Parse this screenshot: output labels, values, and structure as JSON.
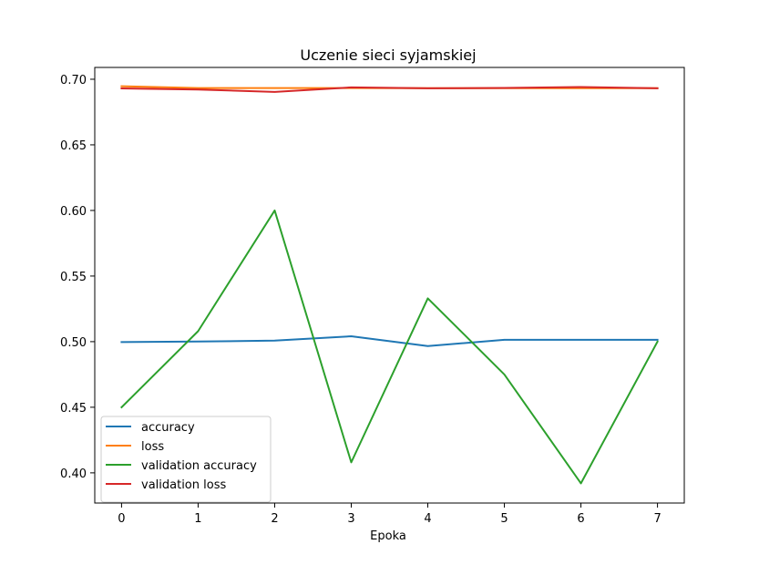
{
  "chart_data": {
    "type": "line",
    "title": "Uczenie sieci syjamskiej",
    "xlabel": "Epoka",
    "ylabel": "",
    "xlim": [
      -0.35,
      7.35
    ],
    "ylim": [
      0.377,
      0.709
    ],
    "xticks": [
      0,
      1,
      2,
      3,
      4,
      5,
      6,
      7
    ],
    "yticks": [
      0.4,
      0.45,
      0.5,
      0.55,
      0.6,
      0.65,
      0.7
    ],
    "ytick_labels": [
      "0.40",
      "0.45",
      "0.50",
      "0.55",
      "0.60",
      "0.65",
      "0.70"
    ],
    "grid": false,
    "legend_position": "lower-left",
    "x": [
      0,
      1,
      2,
      3,
      4,
      5,
      6,
      7
    ],
    "series": [
      {
        "name": "accuracy",
        "color": "#1f77b4",
        "values": [
          0.4997,
          0.5001,
          0.5008,
          0.5041,
          0.4966,
          0.5014,
          0.5014,
          0.5014
        ]
      },
      {
        "name": "loss",
        "color": "#ff7f0e",
        "values": [
          0.6947,
          0.6933,
          0.6933,
          0.6933,
          0.6932,
          0.6932,
          0.6932,
          0.6932
        ]
      },
      {
        "name": "validation accuracy",
        "color": "#2ca02c",
        "values": [
          0.45,
          0.508,
          0.6,
          0.408,
          0.533,
          0.475,
          0.392,
          0.5
        ]
      },
      {
        "name": "validation loss",
        "color": "#d62728",
        "values": [
          0.693,
          0.6922,
          0.6903,
          0.6938,
          0.6931,
          0.6934,
          0.6941,
          0.6931
        ]
      }
    ]
  }
}
